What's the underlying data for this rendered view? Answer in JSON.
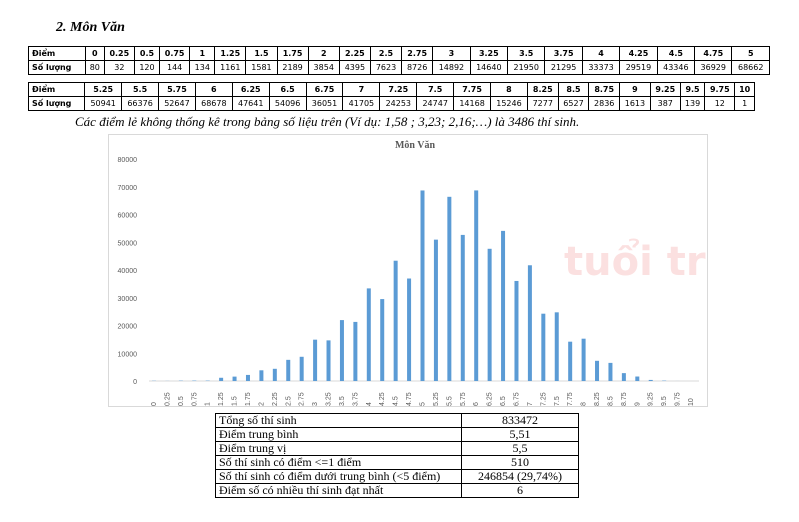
{
  "heading": "2.  Môn Văn",
  "table1": {
    "header_label": "Điểm",
    "count_label": "Số lượng",
    "scores": [
      "0",
      "0.25",
      "0.5",
      "0.75",
      "1",
      "1.25",
      "1.5",
      "1.75",
      "2",
      "2.25",
      "2.5",
      "2.75",
      "3",
      "3.25",
      "3.5",
      "3.75",
      "4",
      "4.25",
      "4.5",
      "4.75",
      "5"
    ],
    "counts": [
      "80",
      "32",
      "120",
      "144",
      "134",
      "1161",
      "1581",
      "2189",
      "3854",
      "4395",
      "7623",
      "8726",
      "14892",
      "14640",
      "21950",
      "21295",
      "33373",
      "29519",
      "43346",
      "36929",
      "68662"
    ]
  },
  "table2": {
    "header_label": "Điểm",
    "count_label": "Số lượng",
    "scores": [
      "5.25",
      "5.5",
      "5.75",
      "6",
      "6.25",
      "6.5",
      "6.75",
      "7",
      "7.25",
      "7.5",
      "7.75",
      "8",
      "8.25",
      "8.5",
      "8.75",
      "9",
      "9.25",
      "9.5",
      "9.75",
      "10"
    ],
    "counts": [
      "50941",
      "66376",
      "52647",
      "68678",
      "47641",
      "54096",
      "36051",
      "41705",
      "24253",
      "24747",
      "14168",
      "15246",
      "7277",
      "6527",
      "2836",
      "1613",
      "387",
      "139",
      "12",
      "1"
    ]
  },
  "note": "Các điểm lẻ không thống kê trong bảng số liệu trên (Ví dụ: 1,58 ; 3,23; 2,16;…) là 3486 thí sinh.",
  "watermark": "tuổi trẻ online",
  "chart_data": {
    "type": "bar",
    "title": "Môn Văn",
    "xlabel": "",
    "ylabel": "",
    "ylim": [
      0,
      80000
    ],
    "yticks": [
      "0",
      "10000",
      "20000",
      "30000",
      "40000",
      "50000",
      "60000",
      "70000",
      "80000"
    ],
    "categories": [
      "0",
      "0.25",
      "0.5",
      "0.75",
      "1",
      "1.25",
      "1.5",
      "1.75",
      "2",
      "2.25",
      "2.5",
      "2.75",
      "3",
      "3.25",
      "3.5",
      "3.75",
      "4",
      "4.25",
      "4.5",
      "4.75",
      "5",
      "5.25",
      "5.5",
      "5.75",
      "6",
      "6.25",
      "6.5",
      "6.75",
      "7",
      "7.25",
      "7.5",
      "7.75",
      "8",
      "8.25",
      "8.5",
      "8.75",
      "9",
      "9.25",
      "9.5",
      "9.75",
      "10"
    ],
    "values": [
      80,
      32,
      120,
      144,
      134,
      1161,
      1581,
      2189,
      3854,
      4395,
      7623,
      8726,
      14892,
      14640,
      21950,
      21295,
      33373,
      29519,
      43346,
      36929,
      68662,
      50941,
      66376,
      52647,
      68678,
      47641,
      54096,
      36051,
      41705,
      24253,
      24747,
      14168,
      15246,
      7277,
      6527,
      2836,
      1613,
      387,
      139,
      12,
      1
    ],
    "bar_color": "#5b9bd5",
    "grid": false
  },
  "summary": [
    {
      "label": "Tổng số thí sinh",
      "value": "833472"
    },
    {
      "label": "Điểm trung bình",
      "value": "5,51"
    },
    {
      "label": "Điểm trung vị",
      "value": "5,5"
    },
    {
      "label": "Số thí sinh có điểm <=1 điểm",
      "value": "510"
    },
    {
      "label": "Số thí sinh có điểm dưới trung bình (<5 điểm)",
      "value": "246854 (29,74%)"
    },
    {
      "label": "Điểm số có nhiều thí sinh đạt nhất",
      "value": "6"
    }
  ]
}
